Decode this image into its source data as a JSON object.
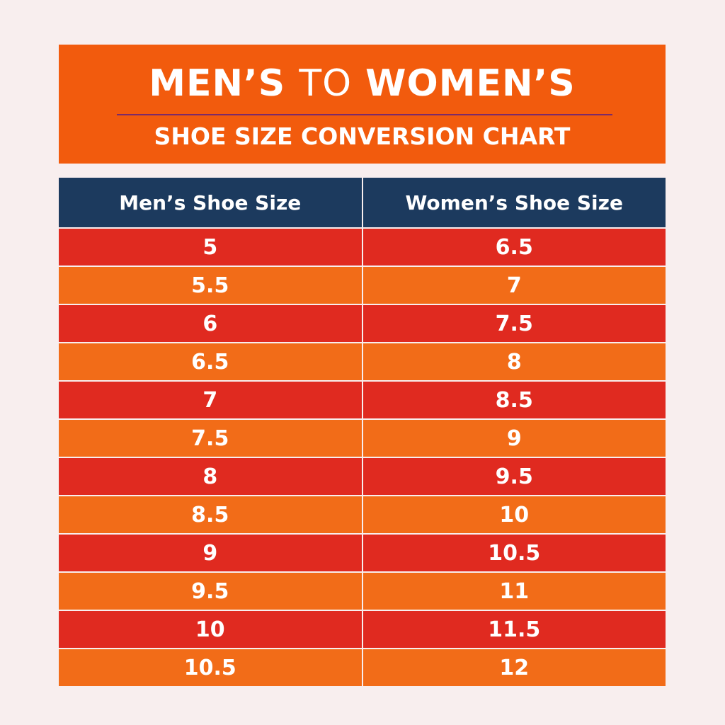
{
  "header": {
    "title": [
      "MEN’S",
      "TO",
      "WOMEN’S"
    ],
    "subtitle": "SHOE SIZE CONVERSION CHART"
  },
  "table": {
    "columns": [
      "Men’s Shoe Size",
      "Women’s Shoe Size"
    ],
    "rows": [
      [
        "5",
        "6.5"
      ],
      [
        "5.5",
        "7"
      ],
      [
        "6",
        "7.5"
      ],
      [
        "6.5",
        "8"
      ],
      [
        "7",
        "8.5"
      ],
      [
        "7.5",
        "9"
      ],
      [
        "8",
        "9.5"
      ],
      [
        "8.5",
        "10"
      ],
      [
        "9",
        "10.5"
      ],
      [
        "9.5",
        "11"
      ],
      [
        "10",
        "11.5"
      ],
      [
        "10.5",
        "12"
      ]
    ]
  }
}
